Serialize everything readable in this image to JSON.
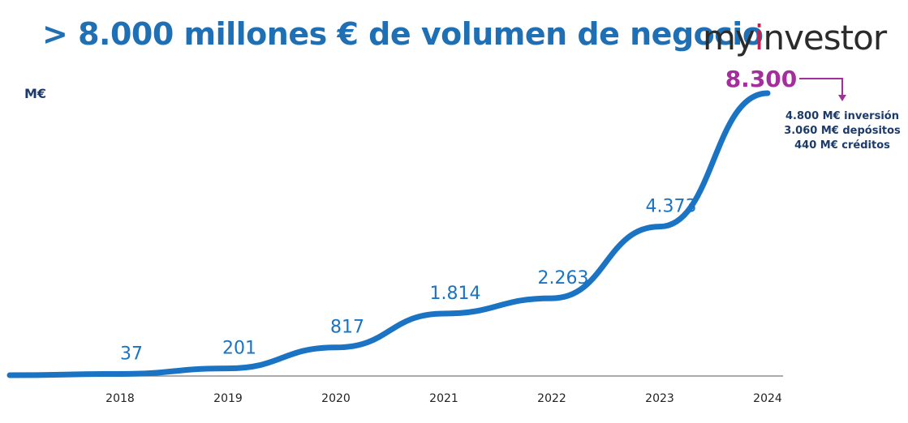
{
  "header": {
    "title": "> 8.000 millones € de volumen de negocio",
    "logo_prefix": "my",
    "logo_accent": "i",
    "logo_suffix": "nvestor"
  },
  "chart_data": {
    "type": "line",
    "ylabel": "M€",
    "categories": [
      "2018",
      "2019",
      "2020",
      "2021",
      "2022",
      "2023",
      "2024"
    ],
    "series": [
      {
        "values": [
          37,
          201,
          817,
          1814,
          2263,
          4373,
          8300
        ],
        "point_labels": [
          "37",
          "201",
          "817",
          "1.814",
          "2.263",
          "4.373",
          "8.300"
        ]
      }
    ],
    "ylim": [
      0,
      8300
    ],
    "grid": false,
    "colors": {
      "line": "#1a73c3",
      "highlight": "#a42e9c",
      "axis": "#7a7a7a"
    },
    "annotation": {
      "items": [
        "4.800 M€ inversión",
        "3.060 M€ depósitos",
        "440 M€ créditos"
      ]
    }
  }
}
